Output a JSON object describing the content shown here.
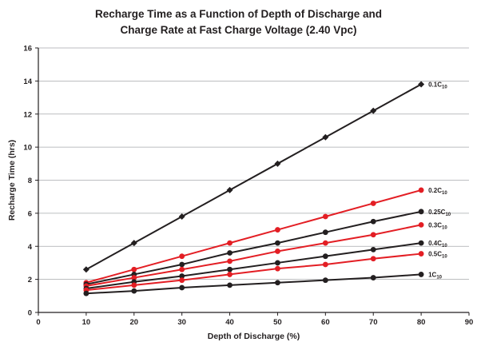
{
  "chart_data": {
    "type": "line",
    "title_lines": [
      "Recharge Time as a Function of Depth of Discharge and",
      "Charge Rate at Fast Charge Voltage (2.40 Vpc)"
    ],
    "xlabel": "Depth of Discharge (%)",
    "ylabel": "Recharge Time (hrs)",
    "xlim": [
      0,
      90
    ],
    "ylim": [
      0,
      16
    ],
    "xticks": [
      0,
      10,
      20,
      30,
      40,
      50,
      60,
      70,
      80,
      90
    ],
    "yticks": [
      0,
      2,
      4,
      6,
      8,
      10,
      12,
      14,
      16
    ],
    "grid": "horizontal",
    "x": [
      10,
      20,
      30,
      40,
      50,
      60,
      70,
      80
    ],
    "series": [
      {
        "name": "0.1C10",
        "label_main": "0.1C",
        "label_sub": "10",
        "color": "#231f20",
        "marker": "diamond",
        "values": [
          2.6,
          4.2,
          5.8,
          7.4,
          9.0,
          10.6,
          12.2,
          13.8
        ]
      },
      {
        "name": "0.2C10",
        "label_main": "0.2C",
        "label_sub": "10",
        "color": "#e31e24",
        "marker": "circle",
        "values": [
          1.8,
          2.6,
          3.4,
          4.2,
          5.0,
          5.8,
          6.6,
          7.4
        ]
      },
      {
        "name": "0.25C10",
        "label_main": "0.25C",
        "label_sub": "10",
        "color": "#231f20",
        "marker": "circle",
        "values": [
          1.7,
          2.3,
          2.9,
          3.6,
          4.2,
          4.85,
          5.5,
          6.1
        ]
      },
      {
        "name": "0.3C10",
        "label_main": "0.3C",
        "label_sub": "10",
        "color": "#e31e24",
        "marker": "circle",
        "values": [
          1.6,
          2.1,
          2.6,
          3.1,
          3.7,
          4.2,
          4.7,
          5.3
        ]
      },
      {
        "name": "0.4C10",
        "label_main": "0.4C",
        "label_sub": "10",
        "color": "#231f20",
        "marker": "circle",
        "values": [
          1.45,
          1.85,
          2.2,
          2.6,
          3.0,
          3.4,
          3.8,
          4.2
        ]
      },
      {
        "name": "0.5C10",
        "label_main": "0.5C",
        "label_sub": "10",
        "color": "#e31e24",
        "marker": "circle",
        "values": [
          1.35,
          1.65,
          1.95,
          2.3,
          2.65,
          2.9,
          3.25,
          3.55
        ]
      },
      {
        "name": "1C10",
        "label_main": "1C",
        "label_sub": "10",
        "color": "#231f20",
        "marker": "circle",
        "values": [
          1.15,
          1.3,
          1.5,
          1.65,
          1.8,
          1.95,
          2.1,
          2.3
        ]
      }
    ]
  }
}
